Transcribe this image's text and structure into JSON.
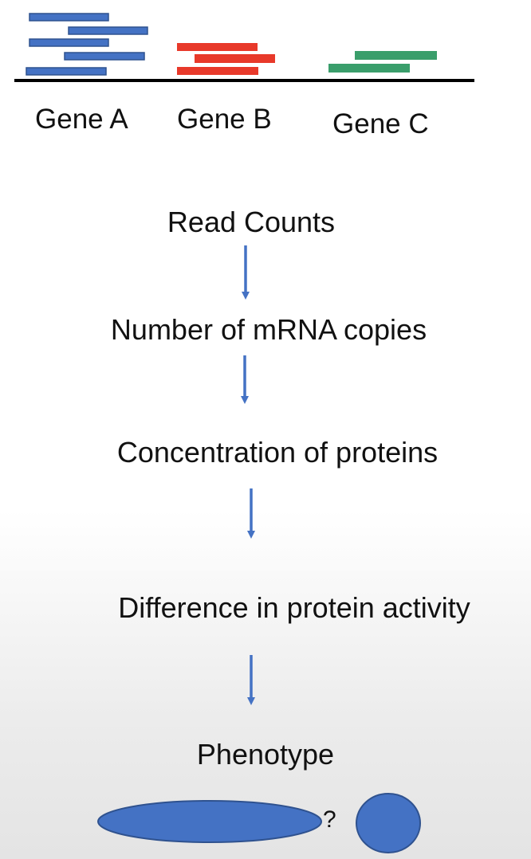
{
  "genes": [
    {
      "id": "a",
      "label": "Gene A",
      "color": "#4472C4",
      "read_count": 5
    },
    {
      "id": "b",
      "label": "Gene B",
      "color": "#E8392A",
      "read_count": 3
    },
    {
      "id": "c",
      "label": "Gene C",
      "color": "#3A9E6B",
      "read_count": 2
    }
  ],
  "flow": {
    "steps": [
      "Read Counts",
      "Number of mRNA copies",
      "Concentration of proteins",
      "Difference in protein activity",
      "Phenotype"
    ],
    "arrow_color": "#4472C4"
  },
  "phenotype": {
    "question": "?",
    "shape_color": "#4472C4",
    "shape_border": "#2F528F"
  }
}
